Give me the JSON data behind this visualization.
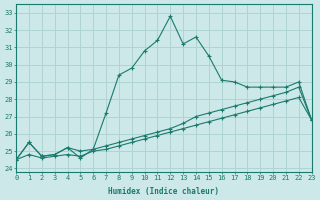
{
  "xlabel": "Humidex (Indice chaleur)",
  "xlim": [
    0,
    23
  ],
  "ylim": [
    23.8,
    33.5
  ],
  "xticks": [
    0,
    1,
    2,
    3,
    4,
    5,
    6,
    7,
    8,
    9,
    10,
    11,
    12,
    13,
    14,
    15,
    16,
    17,
    18,
    19,
    20,
    21,
    22,
    23
  ],
  "yticks": [
    24,
    25,
    26,
    27,
    28,
    29,
    30,
    31,
    32,
    33
  ],
  "background_color": "#cce8e8",
  "grid_color": "#b0d4d4",
  "line_color": "#1a7a6e",
  "line1_x": [
    0,
    1,
    2,
    3,
    4,
    5,
    6,
    7,
    8,
    9,
    10,
    11,
    12,
    13,
    14,
    15,
    16,
    17,
    18,
    19,
    20,
    21,
    22,
    23
  ],
  "line1_y": [
    24.5,
    25.5,
    24.7,
    24.8,
    25.2,
    24.6,
    25.1,
    27.2,
    29.4,
    29.8,
    30.8,
    31.4,
    32.8,
    31.2,
    31.6,
    30.5,
    29.1,
    29.0,
    28.7,
    28.7,
    28.7,
    28.7,
    29.0,
    26.8
  ],
  "line2_x": [
    0,
    1,
    2,
    3,
    4,
    5,
    6,
    7,
    8,
    9,
    10,
    11,
    12,
    13,
    14,
    15,
    16,
    17,
    18,
    19,
    20,
    21,
    22,
    23
  ],
  "line2_y": [
    24.5,
    25.5,
    24.7,
    24.8,
    25.2,
    25.0,
    25.1,
    25.3,
    25.5,
    25.7,
    25.9,
    26.1,
    26.3,
    26.6,
    27.0,
    27.2,
    27.4,
    27.6,
    27.8,
    28.0,
    28.2,
    28.4,
    28.7,
    26.8
  ],
  "line3_x": [
    0,
    1,
    2,
    3,
    4,
    5,
    6,
    7,
    8,
    9,
    10,
    11,
    12,
    13,
    14,
    15,
    16,
    17,
    18,
    19,
    20,
    21,
    22,
    23
  ],
  "line3_y": [
    24.5,
    24.8,
    24.6,
    24.7,
    24.8,
    24.7,
    25.0,
    25.1,
    25.3,
    25.5,
    25.7,
    25.9,
    26.1,
    26.3,
    26.5,
    26.7,
    26.9,
    27.1,
    27.3,
    27.5,
    27.7,
    27.9,
    28.1,
    26.8
  ]
}
